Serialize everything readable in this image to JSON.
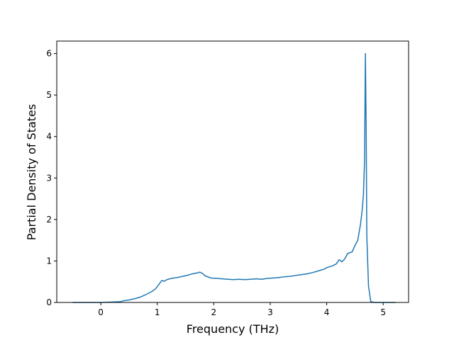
{
  "chart_data": {
    "type": "line",
    "title": "",
    "xlabel": "Frequency (THz)",
    "ylabel": "Partial Density of States",
    "xlim": [
      -0.78,
      5.45
    ],
    "ylim": [
      0,
      6.3
    ],
    "x_ticks": [
      0,
      1,
      2,
      3,
      4,
      5
    ],
    "y_ticks": [
      0,
      1,
      2,
      3,
      4,
      5,
      6
    ],
    "x_tick_labels": [
      "0",
      "1",
      "2",
      "3",
      "4",
      "5"
    ],
    "y_tick_labels": [
      "0",
      "1",
      "2",
      "3",
      "4",
      "5",
      "6"
    ],
    "grid": false,
    "series": [
      {
        "color": "#1f77b4",
        "points": [
          [
            -0.5,
            0.0
          ],
          [
            0.0,
            0.0
          ],
          [
            0.2,
            0.01
          ],
          [
            0.35,
            0.02
          ],
          [
            0.4,
            0.04
          ],
          [
            0.5,
            0.06
          ],
          [
            0.6,
            0.09
          ],
          [
            0.7,
            0.13
          ],
          [
            0.8,
            0.19
          ],
          [
            0.9,
            0.26
          ],
          [
            0.97,
            0.33
          ],
          [
            1.02,
            0.42
          ],
          [
            1.08,
            0.53
          ],
          [
            1.12,
            0.51
          ],
          [
            1.17,
            0.55
          ],
          [
            1.25,
            0.58
          ],
          [
            1.35,
            0.6
          ],
          [
            1.45,
            0.63
          ],
          [
            1.55,
            0.66
          ],
          [
            1.62,
            0.69
          ],
          [
            1.7,
            0.71
          ],
          [
            1.75,
            0.73
          ],
          [
            1.8,
            0.7
          ],
          [
            1.85,
            0.64
          ],
          [
            1.95,
            0.59
          ],
          [
            2.05,
            0.58
          ],
          [
            2.15,
            0.57
          ],
          [
            2.25,
            0.56
          ],
          [
            2.35,
            0.55
          ],
          [
            2.45,
            0.56
          ],
          [
            2.55,
            0.55
          ],
          [
            2.65,
            0.56
          ],
          [
            2.75,
            0.57
          ],
          [
            2.85,
            0.56
          ],
          [
            2.95,
            0.58
          ],
          [
            3.05,
            0.59
          ],
          [
            3.15,
            0.6
          ],
          [
            3.25,
            0.62
          ],
          [
            3.35,
            0.63
          ],
          [
            3.45,
            0.65
          ],
          [
            3.55,
            0.67
          ],
          [
            3.65,
            0.69
          ],
          [
            3.75,
            0.72
          ],
          [
            3.85,
            0.76
          ],
          [
            3.95,
            0.8
          ],
          [
            4.02,
            0.85
          ],
          [
            4.1,
            0.88
          ],
          [
            4.17,
            0.93
          ],
          [
            4.22,
            1.03
          ],
          [
            4.27,
            0.98
          ],
          [
            4.32,
            1.05
          ],
          [
            4.37,
            1.18
          ],
          [
            4.45,
            1.22
          ],
          [
            4.5,
            1.37
          ],
          [
            4.55,
            1.5
          ],
          [
            4.6,
            1.9
          ],
          [
            4.63,
            2.25
          ],
          [
            4.65,
            2.6
          ],
          [
            4.67,
            3.4
          ],
          [
            4.685,
            6.0
          ],
          [
            4.7,
            4.0
          ],
          [
            4.71,
            1.6
          ],
          [
            4.74,
            0.4
          ],
          [
            4.78,
            0.02
          ],
          [
            4.85,
            0.0
          ],
          [
            5.22,
            0.0
          ]
        ]
      }
    ]
  }
}
